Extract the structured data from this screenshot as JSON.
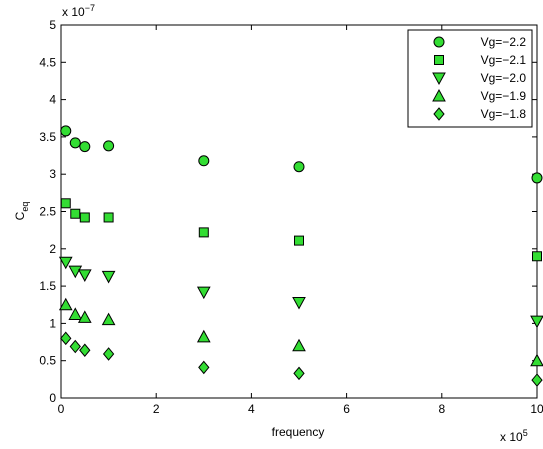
{
  "chart_data": {
    "type": "scatter",
    "title": "",
    "xlabel": "frequency",
    "ylabel_main": "C",
    "ylabel_sub": "eq",
    "x_multiplier_base": "x 10",
    "x_multiplier_exp": "5",
    "y_multiplier_base": "x 10",
    "y_multiplier_exp": "−7",
    "xlim": [
      0,
      10
    ],
    "ylim": [
      0,
      5
    ],
    "x_ticks": [
      0,
      2,
      4,
      6,
      8,
      10
    ],
    "x_tick_labels": [
      "0",
      "2",
      "4",
      "6",
      "8",
      "10"
    ],
    "y_ticks": [
      0,
      0.5,
      1,
      1.5,
      2,
      2.5,
      3,
      3.5,
      4,
      4.5,
      5
    ],
    "y_tick_labels": [
      "0",
      "0.5",
      "1",
      "1.5",
      "2",
      "2.5",
      "3",
      "3.5",
      "4",
      "4.5",
      "5"
    ],
    "grid": false,
    "legend_position": "top-right",
    "marker_fill": "#33dd33",
    "marker_stroke": "#000000",
    "series": [
      {
        "name": "Vg=−2.2",
        "marker": "circle",
        "x": [
          0.1,
          0.3,
          0.5,
          1,
          3,
          5,
          10
        ],
        "y": [
          3.58,
          3.42,
          3.37,
          3.38,
          3.18,
          3.1,
          2.95
        ]
      },
      {
        "name": "Vg=−2.1",
        "marker": "square",
        "x": [
          0.1,
          0.3,
          0.5,
          1,
          3,
          5,
          10
        ],
        "y": [
          2.61,
          2.47,
          2.42,
          2.42,
          2.22,
          2.11,
          1.9
        ]
      },
      {
        "name": "Vg=−2.0",
        "marker": "triangle-down",
        "x": [
          0.1,
          0.3,
          0.5,
          1,
          3,
          5,
          10
        ],
        "y": [
          1.82,
          1.7,
          1.65,
          1.63,
          1.42,
          1.28,
          1.03
        ]
      },
      {
        "name": "Vg=−1.9",
        "marker": "triangle-up",
        "x": [
          0.1,
          0.3,
          0.5,
          1,
          3,
          5,
          10
        ],
        "y": [
          1.25,
          1.12,
          1.08,
          1.05,
          0.82,
          0.7,
          0.5
        ]
      },
      {
        "name": "Vg=−1.8",
        "marker": "diamond",
        "x": [
          0.1,
          0.3,
          0.5,
          1,
          3,
          5,
          10
        ],
        "y": [
          0.8,
          0.69,
          0.64,
          0.59,
          0.41,
          0.33,
          0.24
        ]
      }
    ]
  }
}
